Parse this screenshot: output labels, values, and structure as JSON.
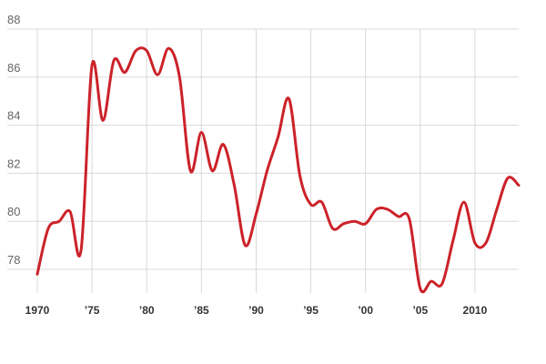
{
  "chart_data": {
    "type": "line",
    "title": "",
    "xlabel": "",
    "ylabel": "",
    "xlim": [
      1970,
      2014
    ],
    "ylim": [
      77,
      88
    ],
    "grid": true,
    "y_ticks": [
      {
        "value": 88,
        "label": "88"
      },
      {
        "value": 86,
        "label": "86"
      },
      {
        "value": 84,
        "label": "84"
      },
      {
        "value": 82,
        "label": "82"
      },
      {
        "value": 80,
        "label": "80"
      },
      {
        "value": 78,
        "label": "78"
      }
    ],
    "x_ticks": [
      {
        "value": 1970,
        "label": "1970"
      },
      {
        "value": 1975,
        "label": "’75"
      },
      {
        "value": 1980,
        "label": "’80"
      },
      {
        "value": 1985,
        "label": "’85"
      },
      {
        "value": 1990,
        "label": "’90"
      },
      {
        "value": 1995,
        "label": "’95"
      },
      {
        "value": 2000,
        "label": "’00"
      },
      {
        "value": 2005,
        "label": "’05"
      },
      {
        "value": 2010,
        "label": "2010"
      }
    ],
    "series": [
      {
        "color": "#cc2229",
        "points": [
          [
            1970,
            77.8
          ],
          [
            1971,
            79.7
          ],
          [
            1972,
            80.0
          ],
          [
            1973,
            80.4
          ],
          [
            1974,
            78.8
          ],
          [
            1975,
            86.5
          ],
          [
            1976,
            84.2
          ],
          [
            1977,
            86.7
          ],
          [
            1978,
            86.2
          ],
          [
            1979,
            87.1
          ],
          [
            1980,
            87.1
          ],
          [
            1981,
            86.1
          ],
          [
            1982,
            87.2
          ],
          [
            1983,
            86.0
          ],
          [
            1984,
            82.1
          ],
          [
            1985,
            83.7
          ],
          [
            1986,
            82.1
          ],
          [
            1987,
            83.2
          ],
          [
            1988,
            81.5
          ],
          [
            1989,
            79.0
          ],
          [
            1990,
            80.3
          ],
          [
            1991,
            82.1
          ],
          [
            1992,
            83.5
          ],
          [
            1993,
            85.1
          ],
          [
            1994,
            81.9
          ],
          [
            1995,
            80.7
          ],
          [
            1996,
            80.8
          ],
          [
            1997,
            79.7
          ],
          [
            1998,
            79.9
          ],
          [
            1999,
            80.0
          ],
          [
            2000,
            79.9
          ],
          [
            2001,
            80.5
          ],
          [
            2002,
            80.5
          ],
          [
            2003,
            80.2
          ],
          [
            2004,
            80.1
          ],
          [
            2005,
            77.2
          ],
          [
            2006,
            77.5
          ],
          [
            2007,
            77.4
          ],
          [
            2008,
            79.2
          ],
          [
            2009,
            80.8
          ],
          [
            2010,
            79.1
          ],
          [
            2011,
            79.1
          ],
          [
            2012,
            80.5
          ],
          [
            2013,
            81.8
          ],
          [
            2014,
            81.5
          ]
        ]
      }
    ]
  }
}
